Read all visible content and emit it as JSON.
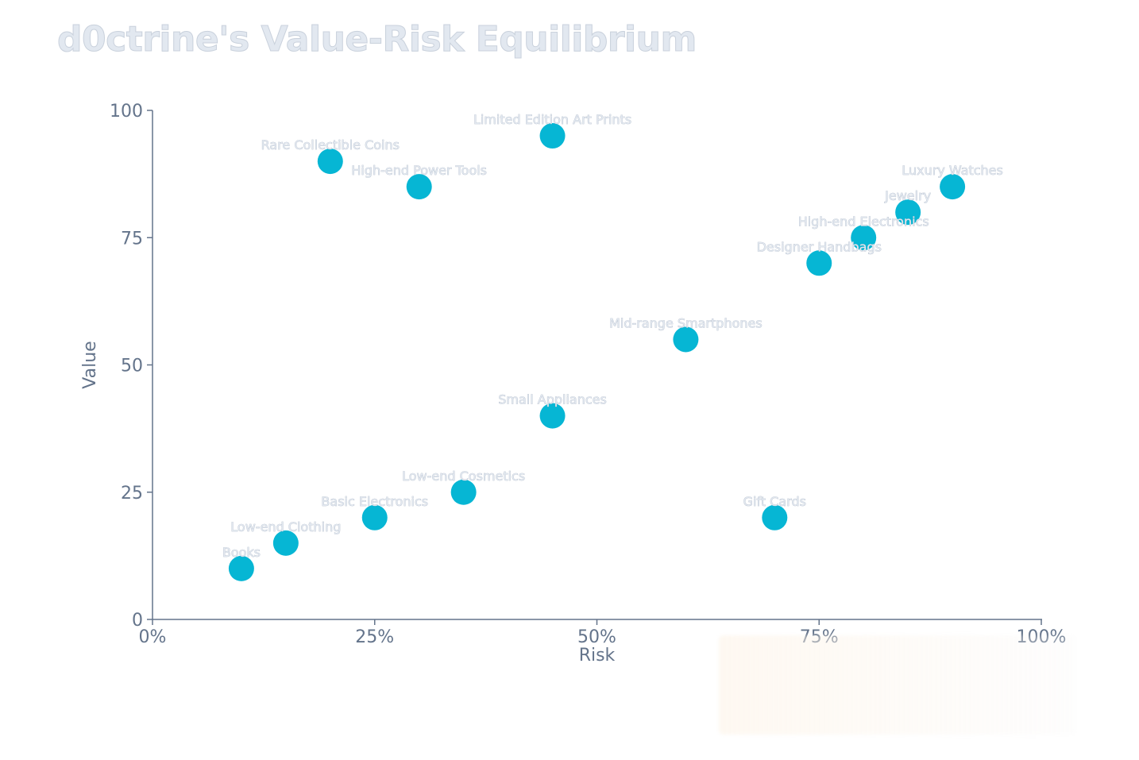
{
  "colors": {
    "point": "#06b6d4",
    "axis": "#64748b",
    "label": "#e2e8f0",
    "title": "#e2e8f0"
  },
  "chart_data": {
    "type": "scatter",
    "title": "d0ctrine's Value-Risk Equilibrium",
    "xlabel": "Risk",
    "ylabel": "Value",
    "xlim": [
      0,
      100
    ],
    "ylim": [
      0,
      100
    ],
    "x_ticks": [
      "0%",
      "25%",
      "50%",
      "75%",
      "100%"
    ],
    "y_ticks": [
      "0",
      "25",
      "50",
      "75",
      "100"
    ],
    "grid": false,
    "points": [
      {
        "label": "Books",
        "x": 10,
        "y": 10
      },
      {
        "label": "Low-end Clothing",
        "x": 15,
        "y": 15
      },
      {
        "label": "Basic Electronics",
        "x": 25,
        "y": 20
      },
      {
        "label": "Low-end Cosmetics",
        "x": 35,
        "y": 25
      },
      {
        "label": "Small Appliances",
        "x": 45,
        "y": 40
      },
      {
        "label": "Mid-range Smartphones",
        "x": 60,
        "y": 55
      },
      {
        "label": "Gift Cards",
        "x": 70,
        "y": 20
      },
      {
        "label": "Designer Handbags",
        "x": 75,
        "y": 70
      },
      {
        "label": "High-end Electronics",
        "x": 80,
        "y": 75
      },
      {
        "label": "Jewelry",
        "x": 85,
        "y": 80
      },
      {
        "label": "Luxury Watches",
        "x": 90,
        "y": 85
      },
      {
        "label": "Rare Collectible Coins",
        "x": 20,
        "y": 90
      },
      {
        "label": "High-end Power Tools",
        "x": 30,
        "y": 85
      },
      {
        "label": "Limited Edition Art Prints",
        "x": 45,
        "y": 95
      }
    ]
  }
}
